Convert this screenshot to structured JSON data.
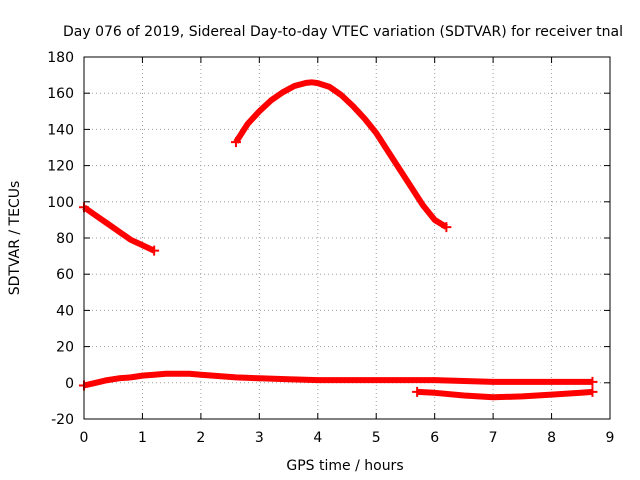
{
  "chart_data": {
    "type": "line",
    "title": "Day 076 of 2019, Sidereal Day-to-day VTEC variation (SDTVAR) for receiver tnal",
    "xlabel": "GPS time / hours",
    "ylabel": "SDTVAR / TECUs",
    "xlim": [
      0,
      9
    ],
    "ylim": [
      -20,
      180
    ],
    "xticks": [
      0,
      1,
      2,
      3,
      4,
      5,
      6,
      7,
      8,
      9
    ],
    "yticks": [
      -20,
      0,
      20,
      40,
      60,
      80,
      100,
      120,
      140,
      160,
      180
    ],
    "grid": true,
    "legend": "none",
    "series_color": "#ff0000",
    "series": [
      {
        "x": [
          0,
          0.2,
          0.4,
          0.6,
          0.8,
          1.0,
          1.2
        ],
        "values": [
          97,
          92.5,
          88,
          83.5,
          79,
          76,
          73
        ]
      },
      {
        "x": [
          2.6,
          2.8,
          3.0,
          3.2,
          3.4,
          3.6,
          3.8,
          3.9,
          4.0,
          4.2,
          4.4,
          4.6,
          4.8,
          5.0,
          5.2,
          5.4,
          5.6,
          5.8,
          6.0,
          6.2
        ],
        "values": [
          133,
          143,
          150,
          156,
          160.5,
          164,
          165.7,
          166,
          165.6,
          163.5,
          159,
          153,
          146,
          138,
          128,
          118,
          108,
          98,
          90,
          86
        ]
      },
      {
        "x": [
          0,
          0.2,
          0.4,
          0.6,
          0.8,
          1.0,
          1.2,
          1.4,
          1.6,
          1.8,
          2.0,
          2.2,
          2.4,
          2.6,
          3.0,
          3.5,
          4.0,
          4.5,
          5.0,
          5.5,
          6.0,
          6.5,
          7.0,
          7.5,
          8.0,
          8.5,
          8.7
        ],
        "values": [
          -1.5,
          0,
          1.5,
          2.5,
          3,
          4,
          4.5,
          5,
          5,
          5,
          4.5,
          4,
          3.5,
          3,
          2.5,
          2,
          1.5,
          1.5,
          1.5,
          1.5,
          1.5,
          1,
          0.5,
          0.5,
          0.5,
          0.5,
          0.5
        ]
      },
      {
        "x": [
          5.7,
          6.0,
          6.5,
          7.0,
          7.5,
          8.0,
          8.5,
          8.7
        ],
        "values": [
          -5,
          -5.5,
          -7,
          -8,
          -7.5,
          -6.5,
          -5.5,
          -5
        ]
      }
    ]
  }
}
